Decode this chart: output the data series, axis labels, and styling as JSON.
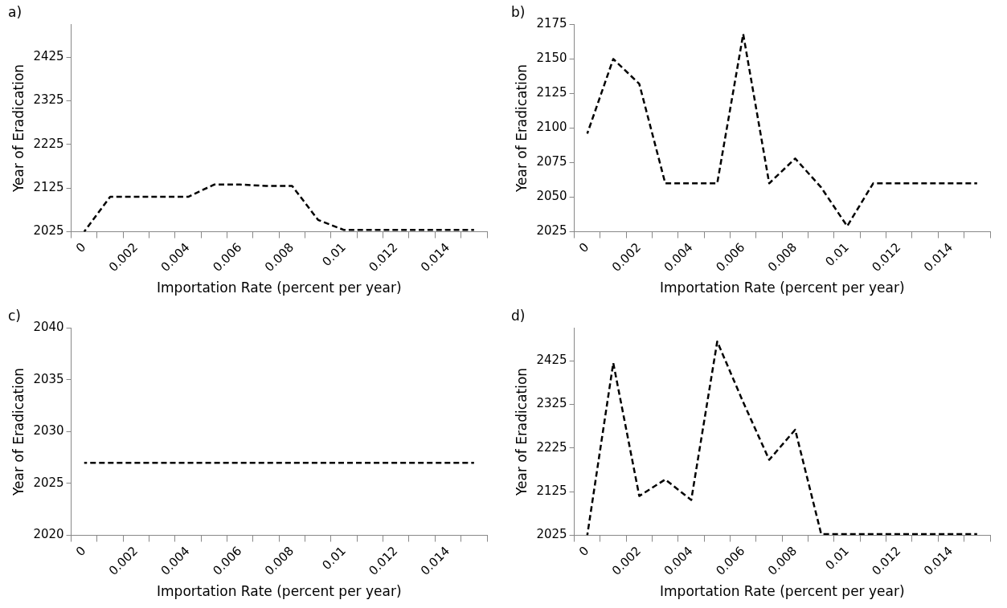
{
  "chart_data": [
    {
      "type": "line",
      "title": "a)",
      "xlabel": "Importation Rate (percent per year)",
      "ylabel": "Year of Eradication",
      "categories": [
        "0",
        null,
        "0.002",
        null,
        "0.004",
        null,
        "0.006",
        null,
        "0.008",
        null,
        "0.01",
        null,
        "0.012",
        null,
        "0.014",
        null
      ],
      "series": [
        {
          "color": "#000000",
          "values": [
            2025,
            2105,
            2105,
            2105,
            2105,
            2133,
            2133,
            2130,
            2130,
            2052,
            2029,
            2029,
            2029,
            2029,
            2029,
            2029
          ]
        }
      ],
      "ylim": [
        2025,
        2500
      ],
      "yticks": [
        2025,
        2125,
        2225,
        2325,
        2425
      ],
      "grid": false,
      "legend": false,
      "marker": "none",
      "line_style": "dashed"
    },
    {
      "type": "line",
      "title": "b)",
      "xlabel": "Importation Rate (percent per year)",
      "ylabel": "Year of Eradication",
      "categories": [
        "0",
        null,
        "0.002",
        null,
        "0.004",
        null,
        "0.006",
        null,
        "0.008",
        null,
        "0.01",
        null,
        "0.012",
        null,
        "0.014",
        null
      ],
      "series": [
        {
          "color": "#000000",
          "values": [
            2096,
            2150,
            2132,
            2060,
            2060,
            2060,
            2168,
            2060,
            2078,
            2057,
            2029,
            2060,
            2060,
            2060,
            2060,
            2060
          ]
        }
      ],
      "ylim": [
        2025,
        2175
      ],
      "yticks": [
        2025,
        2050,
        2075,
        2100,
        2125,
        2150,
        2175
      ],
      "grid": false,
      "legend": false,
      "marker": "none",
      "line_style": "dashed"
    },
    {
      "type": "line",
      "title": "c)",
      "xlabel": "Importation Rate (percent per year)",
      "ylabel": "Year of Eradication",
      "categories": [
        "0",
        null,
        "0.002",
        null,
        "0.004",
        null,
        "0.006",
        null,
        "0.008",
        null,
        "0.01",
        null,
        "0.012",
        null,
        "0.014",
        null
      ],
      "series": [
        {
          "color": "#000000",
          "values": [
            2027,
            2027,
            2027,
            2027,
            2027,
            2027,
            2027,
            2027,
            2027,
            2027,
            2027,
            2027,
            2027,
            2027,
            2027,
            2027
          ]
        }
      ],
      "ylim": [
        2020,
        2040
      ],
      "yticks": [
        2020,
        2025,
        2030,
        2035,
        2040
      ],
      "grid": false,
      "legend": false,
      "marker": "none",
      "line_style": "dashed"
    },
    {
      "type": "line",
      "title": "d)",
      "xlabel": "Importation Rate (percent per year)",
      "ylabel": "Year of Eradication",
      "categories": [
        "0",
        null,
        "0.002",
        null,
        "0.004",
        null,
        "0.006",
        null,
        "0.008",
        null,
        "0.01",
        null,
        "0.012",
        null,
        "0.014",
        null
      ],
      "series": [
        {
          "color": "#000000",
          "values": [
            2025,
            2420,
            2115,
            2153,
            2106,
            2469,
            2330,
            2198,
            2267,
            2028,
            2028,
            2028,
            2028,
            2028,
            2028,
            2028
          ]
        }
      ],
      "ylim": [
        2025,
        2500
      ],
      "yticks": [
        2025,
        2125,
        2225,
        2325,
        2425
      ],
      "grid": false,
      "legend": false,
      "marker": "none",
      "line_style": "dashed"
    }
  ]
}
